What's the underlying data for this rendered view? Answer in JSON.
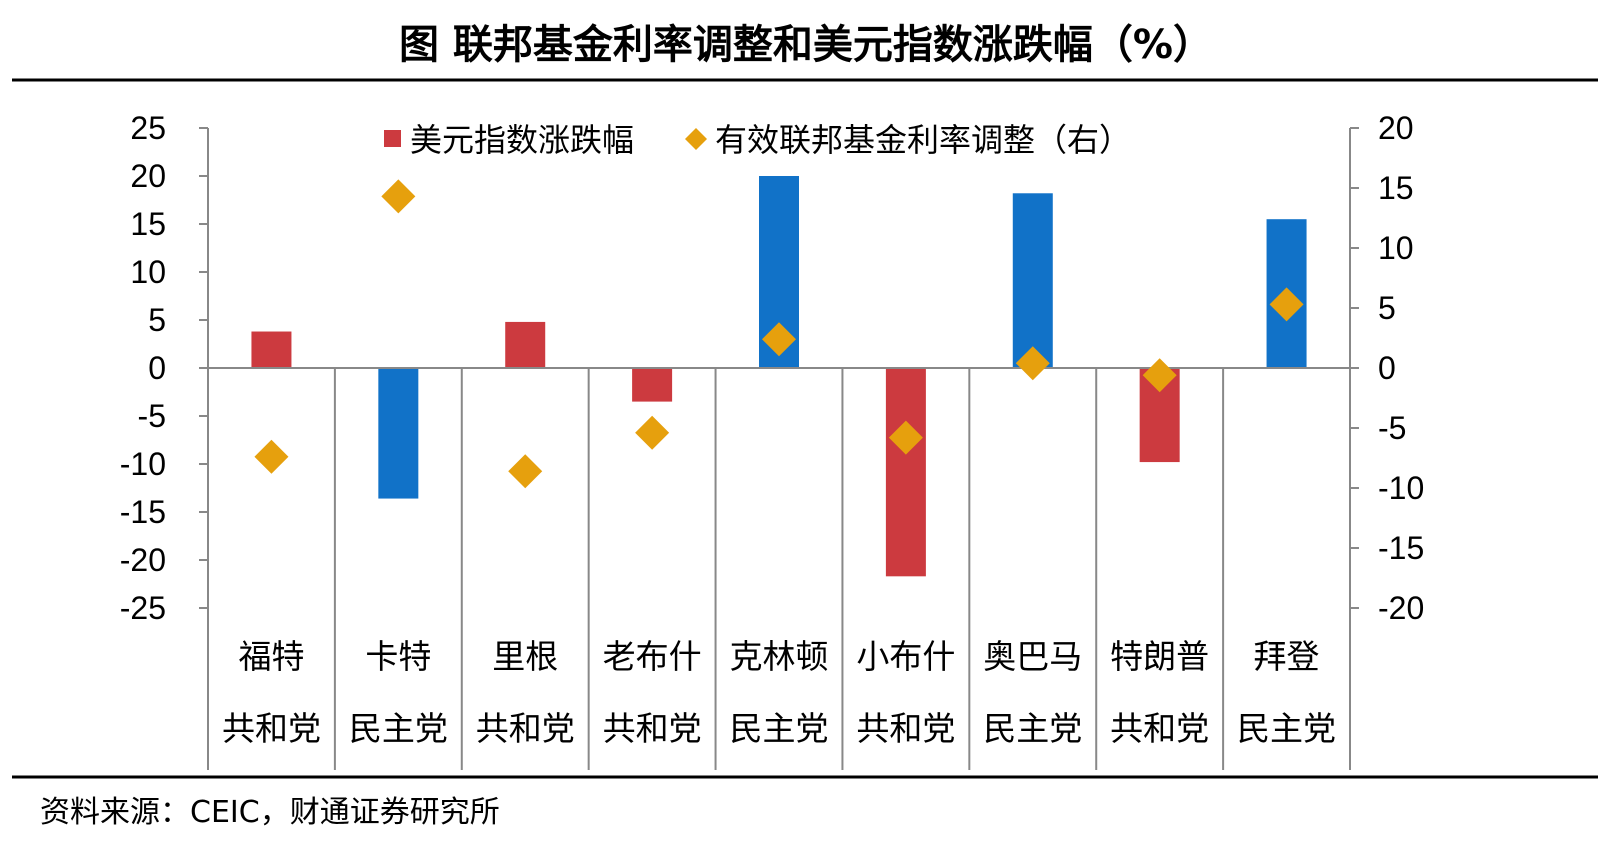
{
  "title": "图  联邦基金利率调整和美元指数涨跌幅（%）",
  "source": "资料来源：CEIC，财通证券研究所",
  "colors": {
    "republican": "#CC3A3F",
    "democrat": "#1172C8",
    "diamond": "#E6A00D",
    "axis": "#888888",
    "rule": "#000000"
  },
  "chart_data": {
    "type": "bar",
    "categories": [
      {
        "name": "福特",
        "party": "共和党"
      },
      {
        "name": "卡特",
        "party": "民主党"
      },
      {
        "name": "里根",
        "party": "共和党"
      },
      {
        "name": "老布什",
        "party": "共和党"
      },
      {
        "name": "克林顿",
        "party": "民主党"
      },
      {
        "name": "小布什",
        "party": "共和党"
      },
      {
        "name": "奥巴马",
        "party": "民主党"
      },
      {
        "name": "特朗普",
        "party": "共和党"
      },
      {
        "name": "拜登",
        "party": "民主党"
      }
    ],
    "series": [
      {
        "name": "美元指数涨跌幅",
        "type": "bar",
        "axis": "left",
        "values": [
          3.8,
          -13.6,
          4.8,
          -3.5,
          20.0,
          -21.7,
          18.2,
          -9.8,
          15.5
        ]
      },
      {
        "name": "有效联邦基金利率调整（右）",
        "type": "scatter",
        "marker": "diamond",
        "axis": "right",
        "values": [
          -7.4,
          14.3,
          -8.6,
          -5.4,
          2.4,
          -5.8,
          0.4,
          -0.6,
          5.3
        ]
      }
    ],
    "ylim_left": [
      -25,
      25
    ],
    "ylim_right": [
      -20,
      20
    ],
    "yticks_left": [
      25,
      20,
      15,
      10,
      5,
      0,
      -5,
      -10,
      -15,
      -20,
      -25
    ],
    "yticks_right": [
      20,
      15,
      10,
      5,
      0,
      -5,
      -10,
      -15,
      -20
    ],
    "legend_position": "top",
    "grid": false
  }
}
